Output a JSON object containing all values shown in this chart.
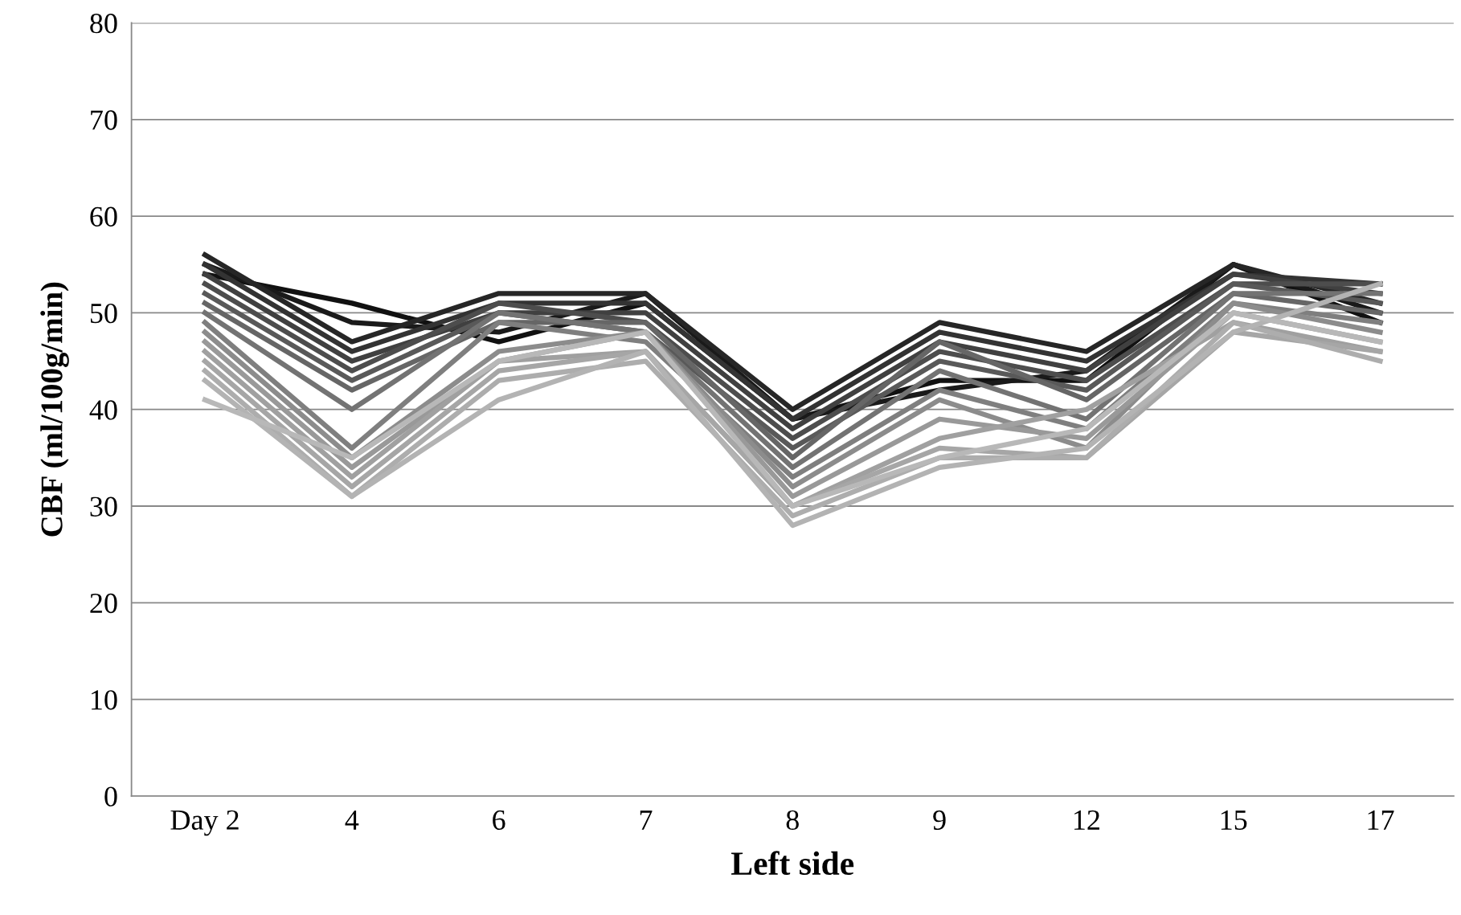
{
  "chart_data": {
    "type": "line",
    "xlabel": "Left side",
    "ylabel": "CBF (ml/100g/min)",
    "categories": [
      "Day 2",
      "4",
      "6",
      "7",
      "8",
      "9",
      "12",
      "15",
      "17"
    ],
    "ylim": [
      0,
      80
    ],
    "yticks": [
      0,
      10,
      20,
      30,
      40,
      50,
      60,
      70,
      80
    ],
    "grid": "y",
    "marker": "none",
    "line_style": "solid",
    "series": [
      {
        "color": "#111111",
        "values": [
          54,
          51,
          47,
          51,
          39,
          43,
          43,
          55,
          49
        ]
      },
      {
        "color": "#1a1a1a",
        "values": [
          55,
          49,
          48,
          52,
          39,
          42,
          44,
          55,
          50
        ]
      },
      {
        "color": "#262626",
        "values": [
          56,
          47,
          52,
          52,
          40,
          49,
          46,
          55,
          51
        ]
      },
      {
        "color": "#333333",
        "values": [
          55,
          46,
          51,
          51,
          39,
          48,
          45,
          54,
          53
        ]
      },
      {
        "color": "#404040",
        "values": [
          54,
          45,
          50,
          50,
          38,
          47,
          44,
          54,
          52
        ]
      },
      {
        "color": "#4d4d4d",
        "values": [
          53,
          44,
          51,
          49,
          37,
          46,
          43,
          53,
          53
        ]
      },
      {
        "color": "#595959",
        "values": [
          52,
          43,
          50,
          48,
          36,
          45,
          42,
          53,
          51
        ]
      },
      {
        "color": "#666666",
        "values": [
          51,
          42,
          49,
          49,
          35,
          47,
          41,
          52,
          50
        ]
      },
      {
        "color": "#737373",
        "values": [
          50,
          40,
          50,
          48,
          34,
          44,
          39,
          52,
          52
        ]
      },
      {
        "color": "#7f7f7f",
        "values": [
          49,
          36,
          49,
          47,
          33,
          42,
          38,
          51,
          49
        ]
      },
      {
        "color": "#8c8c8c",
        "values": [
          48,
          35,
          46,
          48,
          32,
          41,
          36,
          51,
          48
        ]
      },
      {
        "color": "#999999",
        "values": [
          47,
          34,
          45,
          48,
          31,
          39,
          37,
          50,
          47
        ]
      },
      {
        "color": "#a0a0a0",
        "values": [
          46,
          33,
          45,
          46,
          30,
          37,
          40,
          49,
          46
        ]
      },
      {
        "color": "#a6a6a6",
        "values": [
          45,
          32,
          44,
          46,
          30,
          36,
          35,
          48,
          46
        ]
      },
      {
        "color": "#adadad",
        "values": [
          44,
          31,
          43,
          45,
          29,
          35,
          35,
          49,
          45
        ]
      },
      {
        "color": "#b3b3b3",
        "values": [
          43,
          31,
          41,
          46,
          28,
          34,
          36,
          48,
          53
        ]
      },
      {
        "color": "#b8b8b8",
        "values": [
          41,
          35,
          45,
          48,
          30,
          35,
          38,
          50,
          47
        ]
      }
    ]
  }
}
